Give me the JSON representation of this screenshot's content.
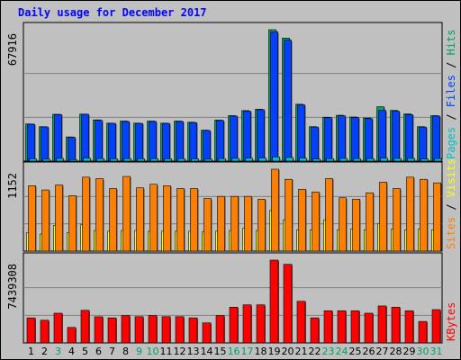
{
  "chart_data": [
    {
      "type": "bar",
      "title": "Daily usage for December 2017",
      "categories": [
        "1",
        "2",
        "3",
        "4",
        "5",
        "6",
        "7",
        "8",
        "9",
        "10",
        "11",
        "12",
        "13",
        "14",
        "15",
        "16",
        "17",
        "18",
        "19",
        "20",
        "21",
        "22",
        "23",
        "24",
        "25",
        "26",
        "27",
        "28",
        "29",
        "30",
        "31"
      ],
      "weekend_days": [
        "3",
        "9",
        "10",
        "16",
        "17",
        "23",
        "24",
        "30",
        "31"
      ],
      "ylabel_max": "67916",
      "axis_legend": [
        {
          "text": "Pages",
          "color": "#00c0c0"
        },
        {
          "text": " / ",
          "color": "#000000"
        },
        {
          "text": "Files",
          "color": "#0040ff"
        },
        {
          "text": " / ",
          "color": "#000000"
        },
        {
          "text": "Hits",
          "color": "#00a060"
        }
      ],
      "ylim": [
        0,
        67916
      ],
      "series": [
        {
          "name": "Hits",
          "color": "#00a060",
          "values": [
            19200,
            17800,
            24200,
            12500,
            24300,
            21300,
            19600,
            20700,
            19600,
            20700,
            19600,
            20700,
            20100,
            16000,
            21200,
            23500,
            26100,
            26800,
            67916,
            63600,
            29400,
            17800,
            22700,
            23700,
            22800,
            22300,
            28100,
            26200,
            24400,
            17800,
            23500
          ]
        },
        {
          "name": "Files",
          "color": "#0040ff",
          "values": [
            19100,
            17700,
            24100,
            12300,
            24200,
            21100,
            19500,
            20500,
            19500,
            20500,
            19500,
            20500,
            19900,
            15800,
            21000,
            23300,
            25800,
            26600,
            66800,
            62500,
            29100,
            17600,
            22500,
            23400,
            22500,
            22000,
            26200,
            25800,
            24000,
            17600,
            23300
          ]
        },
        {
          "name": "Pages",
          "color": "#00c0c0",
          "values": [
            1200,
            1000,
            1400,
            800,
            1500,
            1300,
            1200,
            1300,
            1200,
            1300,
            1200,
            1300,
            1200,
            1000,
            1300,
            1400,
            1500,
            1600,
            2100,
            1900,
            1500,
            1100,
            1300,
            1400,
            1300,
            1300,
            1500,
            1400,
            1400,
            1100,
            1300
          ]
        }
      ]
    },
    {
      "type": "bar",
      "ylabel_max": "1152",
      "axis_legend": [
        {
          "text": "Sites",
          "color": "#ff8000"
        },
        {
          "text": " / ",
          "color": "#000000"
        },
        {
          "text": "Visits",
          "color": "#ffff00"
        }
      ],
      "ylim": [
        0,
        1152
      ],
      "series": [
        {
          "name": "Visits",
          "color": "#ffff00",
          "values": [
            260,
            240,
            360,
            260,
            370,
            290,
            280,
            290,
            290,
            280,
            280,
            280,
            280,
            270,
            280,
            290,
            320,
            290,
            570,
            440,
            300,
            300,
            440,
            300,
            310,
            300,
            390,
            310,
            300,
            310,
            300
          ]
        },
        {
          "name": "Sites",
          "color": "#ff8000",
          "values": [
            920,
            860,
            930,
            780,
            1040,
            1020,
            880,
            1050,
            890,
            940,
            920,
            880,
            880,
            740,
            770,
            770,
            770,
            730,
            1152,
            1010,
            870,
            830,
            1020,
            750,
            730,
            820,
            970,
            880,
            1040,
            1010,
            960
          ]
        }
      ]
    },
    {
      "type": "bar",
      "ylabel_max": "7439308",
      "axis_legend": [
        {
          "text": "KBytes",
          "color": "#ff0000"
        }
      ],
      "ylim": [
        0,
        7439308
      ],
      "series": [
        {
          "name": "KBytes",
          "color": "#ff0000",
          "values": [
            2250000,
            2040000,
            2670000,
            1390000,
            2930000,
            2350000,
            2250000,
            2460000,
            2360000,
            2460000,
            2360000,
            2360000,
            2250000,
            1800000,
            2460000,
            3210000,
            3420000,
            3420000,
            7439308,
            7060000,
            3740000,
            2250000,
            2890000,
            2890000,
            2890000,
            2670000,
            3320000,
            3210000,
            2890000,
            1930000,
            2990000
          ]
        }
      ]
    }
  ]
}
